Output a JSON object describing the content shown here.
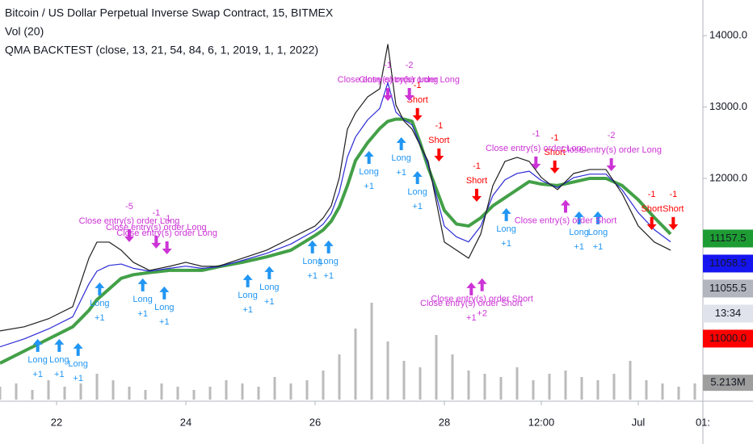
{
  "chart_data": {
    "type": "line",
    "title": "Bitcoin / US Dollar Perpetual Inverse Swap Contract, 15, BITMEX",
    "volume_title": "Vol (20)",
    "indicator": "QMA BACKTEST (close, 13, 21, 54, 84, 6, 1, 2019, 1, 1, 2022)",
    "xlim": [
      3,
      264
    ],
    "ylim": [
      8900,
      14500
    ],
    "xticks": [
      {
        "value": 24,
        "label": "22"
      },
      {
        "value": 72,
        "label": "24"
      },
      {
        "value": 120,
        "label": "26"
      },
      {
        "value": 168,
        "label": "28"
      },
      {
        "value": 204,
        "label": "12:00"
      },
      {
        "value": 240,
        "label": "Jul"
      },
      {
        "value": 264,
        "label": "01:"
      }
    ],
    "yticks": [
      {
        "value": 12000,
        "label": "12000.0"
      },
      {
        "value": 13000,
        "label": "13000.0"
      },
      {
        "value": 14000,
        "label": "14000.0"
      }
    ],
    "grid": false,
    "x": [
      3,
      12,
      21,
      30,
      33,
      36,
      39,
      43.5,
      48,
      52.5,
      58.5,
      66,
      72,
      78,
      84,
      93,
      102,
      111,
      120,
      123,
      126,
      129,
      132,
      135,
      139.5,
      144,
      147,
      150,
      153,
      156,
      159,
      162,
      165,
      168,
      172.5,
      177,
      181.5,
      186,
      190.5,
      195,
      199.5,
      204,
      210,
      216,
      222,
      228,
      234,
      240,
      246,
      252
    ],
    "series": [
      {
        "color": "#1f1f1f",
        "width": 1.2,
        "values": [
          9863,
          9920,
          10033,
          10202,
          10542,
          10881,
          11107,
          11107,
          10994,
          10824,
          10711,
          10768,
          10824,
          10768,
          10768,
          10881,
          10994,
          11164,
          11333,
          11446,
          11616,
          12012,
          12690,
          12917,
          13143,
          13256,
          13878,
          13030,
          12804,
          12690,
          12464,
          12238,
          11673,
          11107,
          10994,
          10881,
          11220,
          11899,
          12238,
          12295,
          12238,
          12012,
          11842,
          12069,
          12125,
          12125,
          11786,
          11333,
          11107,
          10994
        ]
      },
      {
        "color": "#43a047",
        "width": 4,
        "values": [
          9410,
          9580,
          9750,
          9920,
          10033,
          10150,
          10300,
          10450,
          10600,
          10650,
          10680,
          10711,
          10711,
          10711,
          10760,
          10824,
          10900,
          10994,
          11200,
          11277,
          11400,
          11600,
          11900,
          12250,
          12500,
          12700,
          12800,
          12830,
          12830,
          12800,
          12500,
          12150,
          11850,
          11550,
          11360,
          11333,
          11446,
          11616,
          11729,
          11842,
          11955,
          11920,
          11900,
          11950,
          12000,
          12000,
          11900,
          11700,
          11450,
          11220
        ]
      },
      {
        "color": "#2b2bd6",
        "width": 1.2,
        "values": [
          9640,
          9750,
          9890,
          10060,
          10290,
          10520,
          10700,
          10780,
          10800,
          10740,
          10700,
          10740,
          10770,
          10740,
          10760,
          10850,
          10950,
          11080,
          11270,
          11360,
          11510,
          11810,
          12300,
          12580,
          12820,
          12980,
          13340,
          12930,
          12820,
          12750,
          12480,
          12190,
          11760,
          11330,
          11180,
          11110,
          11330,
          11760,
          11980,
          12070,
          12100,
          11970,
          11870,
          12010,
          12060,
          12060,
          11840,
          11520,
          11280,
          11110
        ]
      }
    ],
    "volume": {
      "color": "#9e9e9e",
      "y2lim": [
        0,
        40
      ],
      "x": [
        3,
        9,
        15,
        21,
        27,
        33,
        39,
        45,
        51,
        57,
        63,
        69,
        75,
        81,
        87,
        93,
        99,
        105,
        111,
        117,
        123,
        129,
        135,
        141,
        147,
        153,
        159,
        165,
        171,
        177,
        183,
        189,
        195,
        201,
        207,
        213,
        219,
        225,
        231,
        237,
        243,
        249,
        255,
        261
      ],
      "values": [
        4,
        5,
        3,
        6,
        4,
        5,
        8,
        6,
        4,
        3,
        5,
        4,
        3,
        4,
        6,
        5,
        4,
        7,
        5,
        6,
        9,
        14,
        22,
        30,
        18,
        12,
        10,
        20,
        14,
        9,
        8,
        7,
        10,
        6,
        8,
        9,
        7,
        6,
        8,
        12,
        6,
        5,
        4,
        5
      ]
    },
    "signals": [
      {
        "side": "Long",
        "text": "Long",
        "qty": "+1",
        "x": 17,
        "y": 9750
      },
      {
        "side": "Long",
        "text": "Long",
        "qty": "+1",
        "x": 25,
        "y": 9750
      },
      {
        "side": "Long",
        "text": "Long",
        "qty": "+1",
        "x": 32,
        "y": 9693
      },
      {
        "side": "Long",
        "text": "Long",
        "qty": "+1",
        "x": 40,
        "y": 10542
      },
      {
        "side": "Long",
        "text": "Long",
        "qty": "+1",
        "x": 56,
        "y": 10598
      },
      {
        "side": "Long",
        "text": "Long",
        "qty": "+1",
        "x": 64,
        "y": 10485
      },
      {
        "side": "Long",
        "text": "Long",
        "qty": "+1",
        "x": 95,
        "y": 10655
      },
      {
        "side": "Long",
        "text": "Long",
        "qty": "+1",
        "x": 103,
        "y": 10768
      },
      {
        "side": "Long",
        "text": "Long",
        "qty": "+1",
        "x": 119,
        "y": 11130
      },
      {
        "side": "Long",
        "text": "Long",
        "qty": "+1",
        "x": 125,
        "y": 11130
      },
      {
        "side": "Long",
        "text": "Long",
        "qty": "+1",
        "x": 140,
        "y": 12385
      },
      {
        "side": "Long",
        "text": "Long",
        "qty": "+1",
        "x": 152,
        "y": 12577
      },
      {
        "side": "Long",
        "text": "Long",
        "qty": "+1",
        "x": 158,
        "y": 12102
      },
      {
        "side": "Long",
        "text": "Long",
        "qty": "+1",
        "x": 191,
        "y": 11582
      },
      {
        "side": "Long",
        "text": "Long",
        "qty": "+1",
        "x": 218,
        "y": 11537
      },
      {
        "side": "Long",
        "text": "Long",
        "qty": "+1",
        "x": 225,
        "y": 11537
      },
      {
        "side": "Short",
        "text": "Short",
        "qty": "-1",
        "x": 158,
        "y": 12804
      },
      {
        "side": "Short",
        "text": "Short",
        "qty": "-1",
        "x": 166,
        "y": 12238
      },
      {
        "side": "Short",
        "text": "Short",
        "qty": "-1",
        "x": 180,
        "y": 11673
      },
      {
        "side": "Short",
        "text": "Short",
        "qty": "-1",
        "x": 209,
        "y": 12069
      },
      {
        "side": "Short",
        "text": "Short",
        "qty": "-1",
        "x": 245,
        "y": 11277
      },
      {
        "side": "Short",
        "text": "Short",
        "qty": "-1",
        "x": 253,
        "y": 11277
      },
      {
        "side": "CloseLong",
        "text": "Close entry(s) order Long",
        "qty": "-5",
        "x": 51,
        "y": 11107
      },
      {
        "side": "CloseLong",
        "text": "Close entry(s) order Long",
        "qty": "-1",
        "x": 61,
        "y": 11017
      },
      {
        "side": "CloseLong",
        "text": "Close entry(s) order Long",
        "qty": "-1",
        "x": 65,
        "y": 10937
      },
      {
        "side": "CloseLong",
        "text": "Close entry(s) order Long",
        "qty": "-1",
        "x": 147,
        "y": 13086
      },
      {
        "side": "CloseLong",
        "text": "Close entry(s) order Long",
        "qty": "-2",
        "x": 155,
        "y": 13086
      },
      {
        "side": "CloseLong",
        "text": "Close entry(s) order Long",
        "qty": "-1",
        "x": 202,
        "y": 12125
      },
      {
        "side": "CloseLong",
        "text": "Close entry(s) order Long",
        "qty": "-2",
        "x": 230,
        "y": 12102
      },
      {
        "side": "CloseShort",
        "text": "Close entry(s) order Short",
        "qty": "+1",
        "x": 178,
        "y": 10542
      },
      {
        "side": "CloseShort",
        "text": "Close entry(s) order Short",
        "qty": "+2",
        "x": 182,
        "y": 10600
      },
      {
        "side": "CloseShort",
        "text": "Close entry(s) order Short",
        "x": 213,
        "y": 11700
      }
    ],
    "side_colors": {
      "Long": "#2196f3",
      "Short": "#ff0000",
      "CloseLong": "#cc33d6",
      "CloseShort": "#cc33d6"
    },
    "price_labels": [
      {
        "value": 11157.5,
        "label": "11157.5",
        "color": "#1e9c34",
        "text_color": "#ffffff"
      },
      {
        "value": 11058.5,
        "label": "11058.5",
        "color": "#1515f0",
        "text_color": "#ffffff"
      },
      {
        "value": 11055.5,
        "label": "11055.5",
        "color": "#b2b5be",
        "text_color": "#ffffff"
      },
      {
        "label": "13:34",
        "color": "#e0e3eb",
        "text_color": "#131722"
      },
      {
        "value": 11000,
        "label": "11000.0",
        "color": "#ff0000",
        "text_color": "#ffffff"
      }
    ],
    "volume_label": {
      "value": 5.213,
      "label": "5.213M",
      "color": "#9e9e9e",
      "text_color": "#ffffff"
    }
  }
}
